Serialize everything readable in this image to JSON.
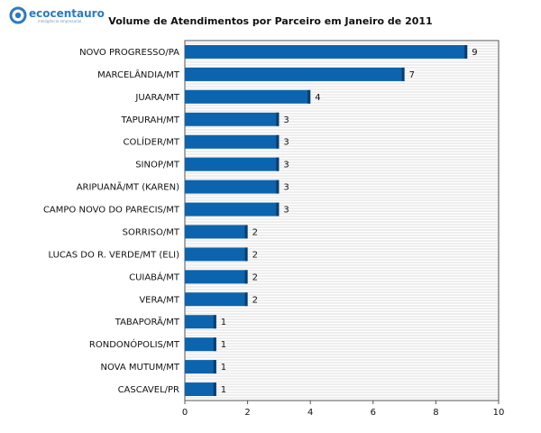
{
  "brand": {
    "name": "ecocentauro",
    "tagline": "inteligência empresarial"
  },
  "chart_data": {
    "type": "bar",
    "orientation": "horizontal",
    "title": "Volume de Atendimentos por Parceiro em Janeiro de 2011",
    "xlabel": "",
    "ylabel": "",
    "xlim": [
      0,
      10
    ],
    "xticks": [
      "0",
      "2",
      "4",
      "6",
      "8",
      "10"
    ],
    "grid": true,
    "bar_color": "#0b64ad",
    "bar_edge_color": "#0a3d6e",
    "categories": [
      "NOVO PROGRESSO/PA",
      "MARCELÂNDIA/MT",
      "JUARA/MT",
      "TAPURAH/MT",
      "COLÍDER/MT",
      "SINOP/MT",
      "ARIPUANÃ/MT (KAREN)",
      "CAMPO NOVO DO PARECIS/MT",
      "SORRISO/MT",
      "LUCAS DO R. VERDE/MT (ELI)",
      "CUIABÁ/MT",
      "VERA/MT",
      "TABAPORÃ/MT",
      "RONDONÓPOLIS/MT",
      "NOVA MUTUM/MT",
      "CASCAVEL/PR"
    ],
    "values": [
      9,
      7,
      4,
      3,
      3,
      3,
      3,
      3,
      2,
      2,
      2,
      2,
      1,
      1,
      1,
      1
    ],
    "value_labels": [
      "9",
      "7",
      "4",
      "3",
      "3",
      "3",
      "3",
      "3",
      "2",
      "2",
      "2",
      "2",
      "1",
      "1",
      "1",
      "1"
    ]
  }
}
